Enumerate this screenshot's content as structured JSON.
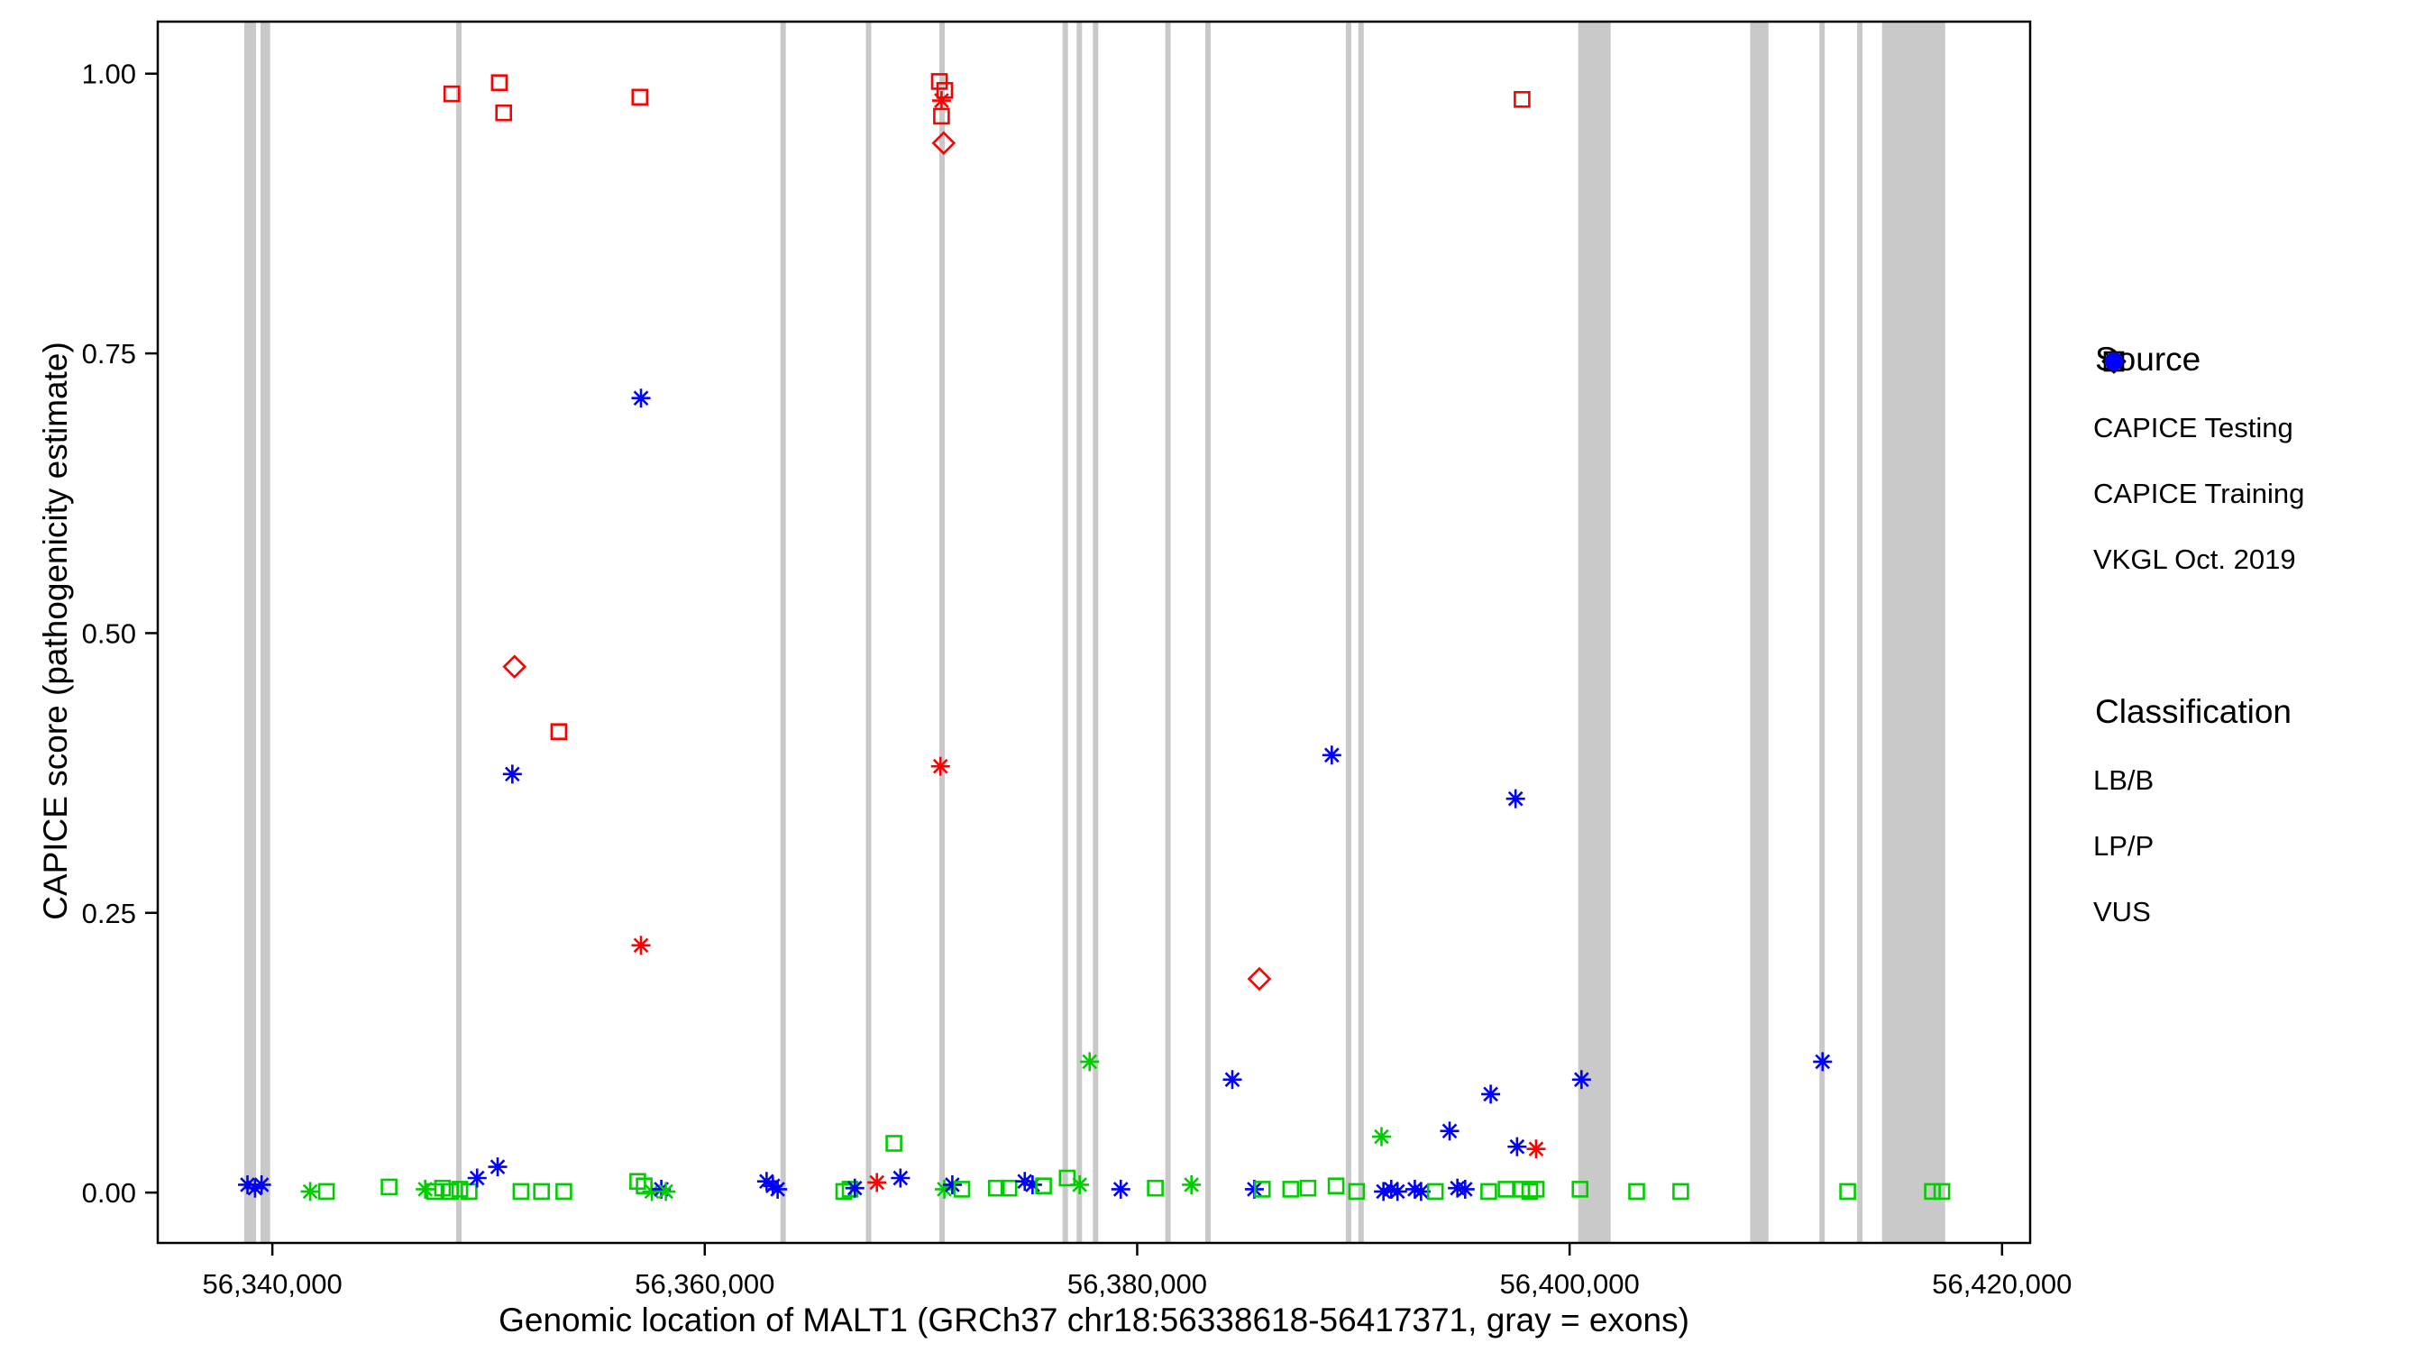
{
  "figure": {
    "background": "#FFFFFF",
    "panel_border_color": "#000000",
    "exon_color": "#C9C9C9"
  },
  "legend": {
    "source": {
      "title": "Source",
      "items": [
        {
          "label": "CAPICE Testing",
          "shape": "diamond"
        },
        {
          "label": "CAPICE Training",
          "shape": "square"
        },
        {
          "label": "VKGL Oct. 2019",
          "shape": "asterisk"
        }
      ]
    },
    "classification": {
      "title": "Classification",
      "items": [
        {
          "label": "LB/B",
          "color": "#00CD00"
        },
        {
          "label": "LP/P",
          "color": "#FF0000"
        },
        {
          "label": "VUS",
          "color": "#0000FF"
        }
      ]
    }
  },
  "chart_data": {
    "type": "scatter",
    "title": "",
    "x_title": "Genomic location of MALT1 (GRCh37 chr18:56338618-56417371, gray = exons)",
    "y_title": "CAPICE score (pathogenicity estimate)",
    "x_domain": [
      56334700,
      56421300
    ],
    "y_domain": [
      -0.045,
      1.0465
    ],
    "x_ticks": [
      {
        "value": 56340000,
        "label": "56,340,000"
      },
      {
        "value": 56360000,
        "label": "56,360,000"
      },
      {
        "value": 56380000,
        "label": "56,380,000"
      },
      {
        "value": 56400000,
        "label": "56,400,000"
      },
      {
        "value": 56420000,
        "label": "56,420,000"
      }
    ],
    "y_ticks": [
      {
        "value": 0.0,
        "label": "0.00"
      },
      {
        "value": 0.25,
        "label": "0.25"
      },
      {
        "value": 0.5,
        "label": "0.50"
      },
      {
        "value": 0.75,
        "label": "0.75"
      },
      {
        "value": 1.0,
        "label": "1.00"
      }
    ],
    "grid": false,
    "legend_position": "right",
    "shape_key": {
      "d": "CAPICE Testing (open diamond)",
      "s": "CAPICE Training (open square)",
      "a": "VKGL Oct. 2019 (asterisk)"
    },
    "class_colors": {
      "g": "#00CD00",
      "r": "#FF0000",
      "b": "#0000FF"
    },
    "class_key": {
      "g": "LB/B",
      "r": "LP/P",
      "b": "VUS"
    },
    "exons": [
      [
        56338700,
        56339250
      ],
      [
        56339450,
        56339900
      ],
      [
        56348500,
        56348750
      ],
      [
        56363500,
        56363750
      ],
      [
        56367450,
        56367700
      ],
      [
        56370850,
        56371100
      ],
      [
        56376550,
        56376800
      ],
      [
        56377200,
        56377450
      ],
      [
        56377950,
        56378200
      ],
      [
        56381300,
        56381550
      ],
      [
        56383150,
        56383400
      ],
      [
        56389650,
        56389900
      ],
      [
        56390230,
        56390480
      ],
      [
        56400400,
        56401900
      ],
      [
        56408350,
        56409200
      ],
      [
        56411550,
        56411800
      ],
      [
        56413300,
        56413550
      ],
      [
        56414450,
        56417371
      ]
    ],
    "point_format": [
      "genomic_position",
      "capice_score",
      "shape: d=diamond s=square a=asterisk",
      "class: g=LB/B r=LP/P b=VUS"
    ],
    "points": [
      [
        56348300,
        0.982,
        "s",
        "r"
      ],
      [
        56350500,
        0.992,
        "s",
        "r"
      ],
      [
        56350700,
        0.965,
        "s",
        "r"
      ],
      [
        56357000,
        0.979,
        "s",
        "r"
      ],
      [
        56370850,
        0.993,
        "s",
        "r"
      ],
      [
        56371100,
        0.985,
        "s",
        "r"
      ],
      [
        56370950,
        0.976,
        "a",
        "r"
      ],
      [
        56370950,
        0.962,
        "s",
        "r"
      ],
      [
        56371050,
        0.938,
        "d",
        "r"
      ],
      [
        56397800,
        0.977,
        "s",
        "r"
      ],
      [
        56357050,
        0.71,
        "a",
        "b"
      ],
      [
        56351200,
        0.47,
        "d",
        "r"
      ],
      [
        56353250,
        0.412,
        "s",
        "r"
      ],
      [
        56351100,
        0.374,
        "a",
        "b"
      ],
      [
        56370900,
        0.381,
        "a",
        "r"
      ],
      [
        56357050,
        0.221,
        "a",
        "r"
      ],
      [
        56389000,
        0.391,
        "a",
        "b"
      ],
      [
        56397500,
        0.352,
        "a",
        "b"
      ],
      [
        56385650,
        0.191,
        "d",
        "r"
      ],
      [
        56377800,
        0.117,
        "a",
        "g"
      ],
      [
        56384400,
        0.101,
        "a",
        "b"
      ],
      [
        56400550,
        0.101,
        "a",
        "b"
      ],
      [
        56411700,
        0.117,
        "a",
        "b"
      ],
      [
        56396350,
        0.088,
        "a",
        "b"
      ],
      [
        56391300,
        0.05,
        "a",
        "g"
      ],
      [
        56394450,
        0.055,
        "a",
        "b"
      ],
      [
        56397570,
        0.041,
        "a",
        "b"
      ],
      [
        56398450,
        0.039,
        "a",
        "r"
      ],
      [
        56368750,
        0.044,
        "s",
        "g"
      ],
      [
        56338850,
        0.007,
        "a",
        "b"
      ],
      [
        56339200,
        0.004,
        "a",
        "b"
      ],
      [
        56339500,
        0.007,
        "a",
        "b"
      ],
      [
        56341750,
        0.001,
        "a",
        "g"
      ],
      [
        56342500,
        0.001,
        "s",
        "g"
      ],
      [
        56345400,
        0.005,
        "s",
        "g"
      ],
      [
        56347070,
        0.003,
        "a",
        "g"
      ],
      [
        56347500,
        0.001,
        "s",
        "g"
      ],
      [
        56347870,
        0.004,
        "s",
        "g"
      ],
      [
        56348240,
        0.001,
        "s",
        "g"
      ],
      [
        56348670,
        0.003,
        "s",
        "g"
      ],
      [
        56349100,
        0.001,
        "s",
        "g"
      ],
      [
        56349470,
        0.013,
        "a",
        "b"
      ],
      [
        56350420,
        0.023,
        "a",
        "b"
      ],
      [
        56351500,
        0.001,
        "s",
        "g"
      ],
      [
        56352450,
        0.001,
        "s",
        "g"
      ],
      [
        56353480,
        0.001,
        "s",
        "g"
      ],
      [
        56356900,
        0.01,
        "s",
        "g"
      ],
      [
        56357200,
        0.006,
        "s",
        "g"
      ],
      [
        56357550,
        0.001,
        "a",
        "g"
      ],
      [
        56357990,
        0.003,
        "a",
        "b"
      ],
      [
        56358200,
        0.001,
        "a",
        "g"
      ],
      [
        56362860,
        0.01,
        "a",
        "b"
      ],
      [
        56363150,
        0.006,
        "a",
        "b"
      ],
      [
        56363370,
        0.003,
        "a",
        "b"
      ],
      [
        56366430,
        0.001,
        "s",
        "g"
      ],
      [
        56366720,
        0.003,
        "s",
        "g"
      ],
      [
        56366940,
        0.004,
        "a",
        "b"
      ],
      [
        56367960,
        0.009,
        "a",
        "r"
      ],
      [
        56369050,
        0.013,
        "a",
        "b"
      ],
      [
        56371080,
        0.003,
        "a",
        "g"
      ],
      [
        56371450,
        0.007,
        "a",
        "b"
      ],
      [
        56371890,
        0.003,
        "s",
        "g"
      ],
      [
        56373490,
        0.004,
        "s",
        "g"
      ],
      [
        56374070,
        0.004,
        "s",
        "g"
      ],
      [
        56374800,
        0.01,
        "a",
        "b"
      ],
      [
        56375160,
        0.007,
        "a",
        "b"
      ],
      [
        56375670,
        0.006,
        "s",
        "g"
      ],
      [
        56376760,
        0.013,
        "s",
        "g"
      ],
      [
        56377340,
        0.007,
        "a",
        "g"
      ],
      [
        56379240,
        0.003,
        "a",
        "b"
      ],
      [
        56380840,
        0.004,
        "s",
        "g"
      ],
      [
        56382510,
        0.007,
        "a",
        "g"
      ],
      [
        56385420,
        0.003,
        "a",
        "b"
      ],
      [
        56385790,
        0.003,
        "s",
        "g"
      ],
      [
        56387100,
        0.003,
        "s",
        "g"
      ],
      [
        56387900,
        0.004,
        "s",
        "g"
      ],
      [
        56389200,
        0.006,
        "s",
        "g"
      ],
      [
        56390150,
        0.001,
        "s",
        "g"
      ],
      [
        56391390,
        0.001,
        "a",
        "b"
      ],
      [
        56391750,
        0.003,
        "a",
        "b"
      ],
      [
        56392040,
        0.001,
        "a",
        "b"
      ],
      [
        56392840,
        0.003,
        "a",
        "b"
      ],
      [
        56393130,
        0.001,
        "a",
        "b"
      ],
      [
        56393790,
        0.001,
        "s",
        "g"
      ],
      [
        56394810,
        0.004,
        "a",
        "b"
      ],
      [
        56395170,
        0.003,
        "a",
        "b"
      ],
      [
        56396260,
        0.001,
        "s",
        "g"
      ],
      [
        56397060,
        0.003,
        "s",
        "g"
      ],
      [
        56397790,
        0.003,
        "s",
        "g"
      ],
      [
        56398160,
        0.001,
        "s",
        "g"
      ],
      [
        56398450,
        0.003,
        "s",
        "g"
      ],
      [
        56400480,
        0.003,
        "s",
        "g"
      ],
      [
        56403100,
        0.001,
        "s",
        "g"
      ],
      [
        56405140,
        0.001,
        "s",
        "g"
      ],
      [
        56412860,
        0.001,
        "s",
        "g"
      ],
      [
        56416780,
        0.001,
        "s",
        "g"
      ],
      [
        56417220,
        0.001,
        "s",
        "g"
      ]
    ]
  }
}
